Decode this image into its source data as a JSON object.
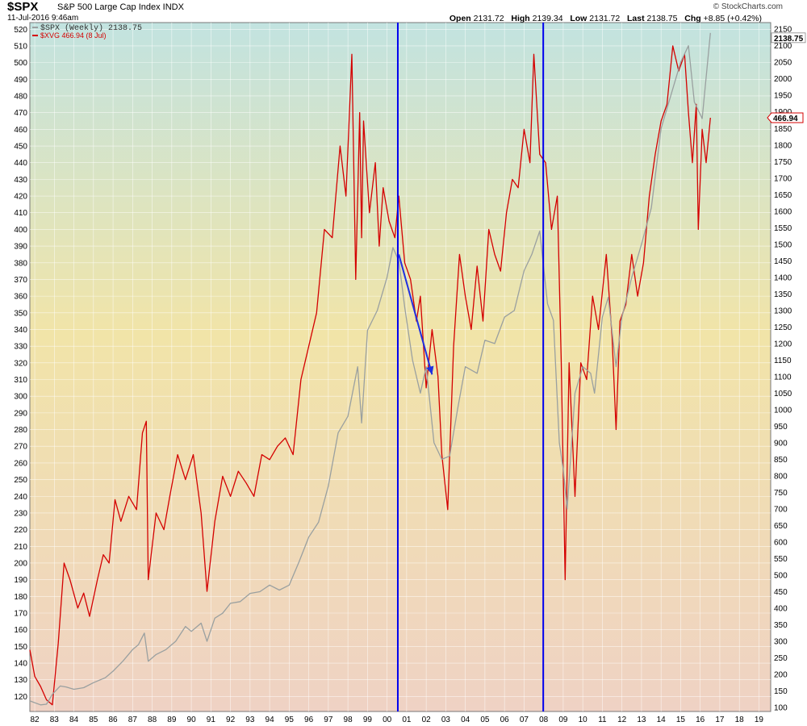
{
  "header": {
    "symbol": "$SPX",
    "name": "S&P 500 Large Cap Index INDX",
    "date": "11-Jul-2016 9:46am",
    "brand": "© StockCharts.com",
    "open_label": "Open",
    "open": "2131.72",
    "high_label": "High",
    "high": "2139.34",
    "low_label": "Low",
    "low": "2131.72",
    "last_label": "Last",
    "last": "2138.75",
    "chg_label": "Chg",
    "chg": "+8.85 (+0.42%)"
  },
  "chart_data": {
    "type": "line",
    "legend": [
      {
        "label": "$SPX (Weekly) 2138.75",
        "color": "#9aa0a0"
      },
      {
        "label": "$XVG 466.94 (8 Jul)",
        "color": "#d40000"
      }
    ],
    "right_axis_tag": "2138.75",
    "red_tag": "466.94",
    "x_tick_labels": [
      "82",
      "83",
      "84",
      "85",
      "86",
      "87",
      "88",
      "89",
      "90",
      "91",
      "92",
      "93",
      "94",
      "95",
      "96",
      "97",
      "98",
      "99",
      "00",
      "01",
      "02",
      "03",
      "04",
      "05",
      "06",
      "07",
      "08",
      "09",
      "10",
      "11",
      "12",
      "13",
      "14",
      "15",
      "16",
      "17",
      "18",
      "19"
    ],
    "x_range_years": [
      1981.75,
      2019.6
    ],
    "left_axis": {
      "series": "$XVG",
      "ylim": [
        111,
        524
      ],
      "ticks": [
        120,
        130,
        140,
        150,
        160,
        170,
        180,
        190,
        200,
        210,
        220,
        230,
        240,
        250,
        260,
        270,
        280,
        290,
        300,
        310,
        320,
        330,
        340,
        350,
        360,
        370,
        380,
        390,
        400,
        410,
        420,
        430,
        440,
        450,
        460,
        470,
        480,
        490,
        500,
        510,
        520
      ]
    },
    "right_axis": {
      "series": "$SPX",
      "ylim": [
        88,
        2170
      ],
      "log": false,
      "ticks": [
        100,
        150,
        200,
        250,
        300,
        350,
        400,
        450,
        500,
        550,
        600,
        650,
        700,
        750,
        800,
        850,
        900,
        950,
        1000,
        1050,
        1100,
        1150,
        1200,
        1250,
        1300,
        1350,
        1400,
        1450,
        1500,
        1550,
        1600,
        1650,
        1700,
        1750,
        1800,
        1850,
        1900,
        1950,
        2000,
        2050,
        2100,
        2150
      ]
    },
    "series": [
      {
        "name": "$XVG",
        "axis": "left",
        "color": "#d40000",
        "x": [
          1981.75,
          1982.0,
          1982.3,
          1982.6,
          1982.9,
          1983.2,
          1983.5,
          1983.8,
          1984.2,
          1984.5,
          1984.8,
          1985.2,
          1985.5,
          1985.8,
          1986.1,
          1986.4,
          1986.8,
          1987.2,
          1987.5,
          1987.7,
          1987.8,
          1988.2,
          1988.6,
          1988.9,
          1989.3,
          1989.7,
          1990.1,
          1990.5,
          1990.8,
          1991.2,
          1991.6,
          1992.0,
          1992.4,
          1992.8,
          1993.2,
          1993.6,
          1994.0,
          1994.4,
          1994.8,
          1995.2,
          1995.6,
          1996.0,
          1996.4,
          1996.8,
          1997.2,
          1997.6,
          1997.9,
          1998.2,
          1998.4,
          1998.6,
          1998.7,
          1998.8,
          1999.1,
          1999.4,
          1999.6,
          1999.8,
          2000.1,
          2000.4,
          2000.6,
          2000.9,
          2001.2,
          2001.5,
          2001.7,
          2002.0,
          2002.3,
          2002.6,
          2002.8,
          2003.1,
          2003.4,
          2003.7,
          2004.0,
          2004.3,
          2004.6,
          2004.9,
          2005.2,
          2005.5,
          2005.8,
          2006.1,
          2006.4,
          2006.7,
          2007.0,
          2007.3,
          2007.5,
          2007.8,
          2008.1,
          2008.4,
          2008.7,
          2008.9,
          2009.1,
          2009.3,
          2009.6,
          2009.9,
          2010.2,
          2010.5,
          2010.8,
          2011.2,
          2011.5,
          2011.7,
          2011.9,
          2012.2,
          2012.5,
          2012.8,
          2013.1,
          2013.4,
          2013.7,
          2014.0,
          2014.3,
          2014.6,
          2014.9,
          2015.2,
          2015.4,
          2015.6,
          2015.8,
          2015.9,
          2016.0,
          2016.1,
          2016.3,
          2016.52
        ],
        "values": [
          148,
          132,
          126,
          118,
          115,
          152,
          200,
          190,
          173,
          182,
          168,
          190,
          205,
          200,
          238,
          225,
          240,
          232,
          278,
          285,
          190,
          230,
          220,
          240,
          265,
          250,
          265,
          230,
          183,
          225,
          252,
          240,
          255,
          248,
          240,
          265,
          262,
          270,
          275,
          265,
          310,
          330,
          350,
          400,
          395,
          450,
          420,
          505,
          370,
          470,
          395,
          465,
          410,
          440,
          390,
          425,
          405,
          395,
          420,
          380,
          370,
          345,
          360,
          305,
          340,
          312,
          265,
          232,
          330,
          385,
          360,
          340,
          378,
          345,
          400,
          385,
          375,
          410,
          430,
          425,
          460,
          440,
          505,
          445,
          440,
          400,
          420,
          320,
          190,
          320,
          240,
          320,
          310,
          360,
          340,
          385,
          335,
          280,
          345,
          355,
          385,
          360,
          380,
          420,
          445,
          465,
          475,
          510,
          495,
          505,
          470,
          440,
          475,
          400,
          430,
          460,
          440,
          466.94
        ]
      },
      {
        "name": "$SPX",
        "axis": "right",
        "color": "#9aa0a0",
        "x": [
          1981.75,
          1982.3,
          1982.6,
          1982.9,
          1983.3,
          1983.6,
          1984.0,
          1984.5,
          1985.0,
          1985.6,
          1986.0,
          1986.5,
          1987.0,
          1987.3,
          1987.6,
          1987.8,
          1988.2,
          1988.7,
          1989.2,
          1989.7,
          1990.0,
          1990.5,
          1990.8,
          1991.2,
          1991.6,
          1992.0,
          1992.5,
          1993.0,
          1993.5,
          1994.0,
          1994.5,
          1995.0,
          1995.5,
          1996.0,
          1996.5,
          1997.0,
          1997.5,
          1998.0,
          1998.5,
          1998.7,
          1999.0,
          1999.5,
          2000.0,
          2000.3,
          2000.6,
          2000.9,
          2001.3,
          2001.7,
          2002.0,
          2002.4,
          2002.8,
          2003.2,
          2003.6,
          2004.0,
          2004.6,
          2005.0,
          2005.5,
          2006.0,
          2006.5,
          2007.0,
          2007.4,
          2007.8,
          2008.2,
          2008.5,
          2008.8,
          2009.0,
          2009.2,
          2009.6,
          2010.0,
          2010.4,
          2010.6,
          2011.0,
          2011.3,
          2011.7,
          2012.0,
          2012.5,
          2013.0,
          2013.5,
          2014.0,
          2014.5,
          2015.0,
          2015.4,
          2015.7,
          2016.1,
          2016.52
        ],
        "values": [
          120,
          108,
          110,
          140,
          165,
          162,
          155,
          160,
          175,
          190,
          210,
          240,
          275,
          290,
          325,
          240,
          260,
          275,
          300,
          345,
          330,
          355,
          300,
          370,
          385,
          415,
          420,
          445,
          450,
          470,
          455,
          470,
          540,
          615,
          660,
          770,
          930,
          980,
          1130,
          960,
          1240,
          1300,
          1400,
          1490,
          1450,
          1310,
          1150,
          1050,
          1130,
          900,
          850,
          860,
          1000,
          1130,
          1110,
          1210,
          1200,
          1280,
          1300,
          1420,
          1470,
          1540,
          1320,
          1270,
          900,
          820,
          700,
          1050,
          1130,
          1110,
          1050,
          1280,
          1340,
          1130,
          1280,
          1400,
          1500,
          1610,
          1850,
          1950,
          2050,
          2100,
          1930,
          1880,
          2138.75
        ]
      }
    ]
  }
}
